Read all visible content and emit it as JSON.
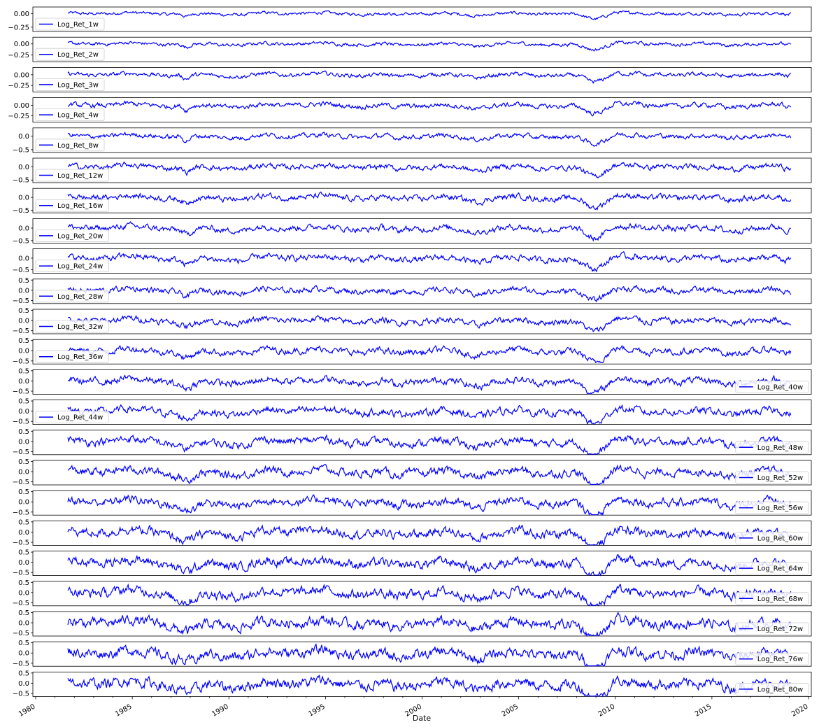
{
  "figure": {
    "xlabel": "Date",
    "x_ticks": [
      "1980",
      "1985",
      "1990",
      "1995",
      "2000",
      "2005",
      "2010",
      "2015",
      "2020"
    ],
    "line_color": "#0000ff",
    "grid": false
  },
  "chart_data": [
    {
      "type": "line",
      "series": [
        {
          "name": "Log_Ret_1w",
          "x_range": [
            "1981-09",
            "2019-02"
          ],
          "ylim": [
            -0.33,
            0.12
          ],
          "y_ticks": [
            "0.00",
            "−0.25"
          ],
          "amplitude": 0.03
        }
      ],
      "legend": "lower-left"
    },
    {
      "type": "line",
      "series": [
        {
          "name": "Log_Ret_2w",
          "x_range": [
            "1981-09",
            "2019-02"
          ],
          "ylim": [
            -0.4,
            0.15
          ],
          "y_ticks": [
            "0.00",
            "−0.25"
          ],
          "amplitude": 0.04
        }
      ],
      "legend": "lower-left"
    },
    {
      "type": "line",
      "series": [
        {
          "name": "Log_Ret_3w",
          "x_range": [
            "1981-09",
            "2019-02"
          ],
          "ylim": [
            -0.4,
            0.17
          ],
          "y_ticks": [
            "0.00",
            "−0.25"
          ],
          "amplitude": 0.05
        }
      ],
      "legend": "lower-left"
    },
    {
      "type": "line",
      "series": [
        {
          "name": "Log_Ret_4w",
          "x_range": [
            "1981-09",
            "2019-02"
          ],
          "ylim": [
            -0.4,
            0.18
          ],
          "y_ticks": [
            "0.00",
            "−0.25"
          ],
          "amplitude": 0.06
        }
      ],
      "legend": "lower-left"
    },
    {
      "type": "line",
      "series": [
        {
          "name": "Log_Ret_8w",
          "x_range": [
            "1981-09",
            "2019-02"
          ],
          "ylim": [
            -0.6,
            0.3
          ],
          "y_ticks": [
            "0.0",
            "−0.5"
          ],
          "amplitude": 0.09
        }
      ],
      "legend": "lower-left"
    },
    {
      "type": "line",
      "series": [
        {
          "name": "Log_Ret_12w",
          "x_range": [
            "1981-09",
            "2019-02"
          ],
          "ylim": [
            -0.6,
            0.33
          ],
          "y_ticks": [
            "0.0",
            "−0.5"
          ],
          "amplitude": 0.11
        }
      ],
      "legend": "lower-left"
    },
    {
      "type": "line",
      "series": [
        {
          "name": "Log_Ret_16w",
          "x_range": [
            "1981-09",
            "2019-02"
          ],
          "ylim": [
            -0.6,
            0.35
          ],
          "y_ticks": [
            "0.0",
            "−0.5"
          ],
          "amplitude": 0.12
        }
      ],
      "legend": "lower-left"
    },
    {
      "type": "line",
      "series": [
        {
          "name": "Log_Ret_20w",
          "x_range": [
            "1981-09",
            "2019-02"
          ],
          "ylim": [
            -0.6,
            0.38
          ],
          "y_ticks": [
            "0.0",
            "−0.5"
          ],
          "amplitude": 0.13
        }
      ],
      "legend": "lower-left"
    },
    {
      "type": "line",
      "series": [
        {
          "name": "Log_Ret_24w",
          "x_range": [
            "1981-09",
            "2019-02"
          ],
          "ylim": [
            -0.65,
            0.4
          ],
          "y_ticks": [
            "0.0",
            "−0.5"
          ],
          "amplitude": 0.14
        }
      ],
      "legend": "lower-left"
    },
    {
      "type": "line",
      "series": [
        {
          "name": "Log_Ret_28w",
          "x_range": [
            "1981-09",
            "2019-02"
          ],
          "ylim": [
            -0.65,
            0.55
          ],
          "y_ticks": [
            "0.5",
            "0.0",
            "−0.5"
          ],
          "amplitude": 0.15
        }
      ],
      "legend": "lower-left"
    },
    {
      "type": "line",
      "series": [
        {
          "name": "Log_Ret_32w",
          "x_range": [
            "1981-09",
            "2019-02"
          ],
          "ylim": [
            -0.65,
            0.55
          ],
          "y_ticks": [
            "0.5",
            "0.0",
            "−0.5"
          ],
          "amplitude": 0.16
        }
      ],
      "legend": "lower-left"
    },
    {
      "type": "line",
      "series": [
        {
          "name": "Log_Ret_36w",
          "x_range": [
            "1981-09",
            "2019-02"
          ],
          "ylim": [
            -0.65,
            0.55
          ],
          "y_ticks": [
            "0.5",
            "0.0",
            "−0.5"
          ],
          "amplitude": 0.17
        }
      ],
      "legend": "lower-left"
    },
    {
      "type": "line",
      "series": [
        {
          "name": "Log_Ret_40w",
          "x_range": [
            "1981-09",
            "2019-02"
          ],
          "ylim": [
            -0.65,
            0.55
          ],
          "y_ticks": [
            "0.5",
            "0.0",
            "−0.5"
          ],
          "amplitude": 0.18
        }
      ],
      "legend": "lower-right"
    },
    {
      "type": "line",
      "series": [
        {
          "name": "Log_Ret_44w",
          "x_range": [
            "1981-09",
            "2019-02"
          ],
          "ylim": [
            -0.65,
            0.55
          ],
          "y_ticks": [
            "0.5",
            "0.0",
            "−0.5"
          ],
          "amplitude": 0.19
        }
      ],
      "legend": "lower-left"
    },
    {
      "type": "line",
      "series": [
        {
          "name": "Log_Ret_48w",
          "x_range": [
            "1981-09",
            "2019-02"
          ],
          "ylim": [
            -0.65,
            0.55
          ],
          "y_ticks": [
            "0.5",
            "0.0",
            "−0.5"
          ],
          "amplitude": 0.2
        }
      ],
      "legend": "lower-right"
    },
    {
      "type": "line",
      "series": [
        {
          "name": "Log_Ret_52w",
          "x_range": [
            "1981-09",
            "2019-02"
          ],
          "ylim": [
            -0.65,
            0.55
          ],
          "y_ticks": [
            "0.5",
            "0.0",
            "−0.5"
          ],
          "amplitude": 0.21
        }
      ],
      "legend": "lower-right"
    },
    {
      "type": "line",
      "series": [
        {
          "name": "Log_Ret_56w",
          "x_range": [
            "1981-09",
            "2019-02"
          ],
          "ylim": [
            -0.65,
            0.55
          ],
          "y_ticks": [
            "0.5",
            "0.0",
            "−0.5"
          ],
          "amplitude": 0.22
        }
      ],
      "legend": "lower-right"
    },
    {
      "type": "line",
      "series": [
        {
          "name": "Log_Ret_60w",
          "x_range": [
            "1981-09",
            "2019-02"
          ],
          "ylim": [
            -0.65,
            0.55
          ],
          "y_ticks": [
            "0.5",
            "0.0",
            "−0.5"
          ],
          "amplitude": 0.23
        }
      ],
      "legend": "lower-right"
    },
    {
      "type": "line",
      "series": [
        {
          "name": "Log_Ret_64w",
          "x_range": [
            "1981-09",
            "2019-02"
          ],
          "ylim": [
            -0.65,
            0.55
          ],
          "y_ticks": [
            "0.5",
            "0.0",
            "−0.5"
          ],
          "amplitude": 0.24
        }
      ],
      "legend": "lower-right"
    },
    {
      "type": "line",
      "series": [
        {
          "name": "Log_Ret_68w",
          "x_range": [
            "1981-09",
            "2019-02"
          ],
          "ylim": [
            -0.65,
            0.55
          ],
          "y_ticks": [
            "0.5",
            "0.0",
            "−0.5"
          ],
          "amplitude": 0.25
        }
      ],
      "legend": "lower-right"
    },
    {
      "type": "line",
      "series": [
        {
          "name": "Log_Ret_72w",
          "x_range": [
            "1981-09",
            "2019-02"
          ],
          "ylim": [
            -0.65,
            0.55
          ],
          "y_ticks": [
            "0.5",
            "0.0",
            "−0.5"
          ],
          "amplitude": 0.26
        }
      ],
      "legend": "lower-right"
    },
    {
      "type": "line",
      "series": [
        {
          "name": "Log_Ret_76w",
          "x_range": [
            "1981-09",
            "2019-02"
          ],
          "ylim": [
            -0.65,
            0.55
          ],
          "y_ticks": [
            "0.5",
            "0.0",
            "−0.5"
          ],
          "amplitude": 0.27
        }
      ],
      "legend": "lower-right"
    },
    {
      "type": "line",
      "series": [
        {
          "name": "Log_Ret_80w",
          "x_range": [
            "1981-09",
            "2019-02"
          ],
          "ylim": [
            -0.65,
            0.55
          ],
          "y_ticks": [
            "0.5",
            "0.0",
            "−0.5"
          ],
          "amplitude": 0.28
        }
      ],
      "legend": "lower-right"
    }
  ]
}
